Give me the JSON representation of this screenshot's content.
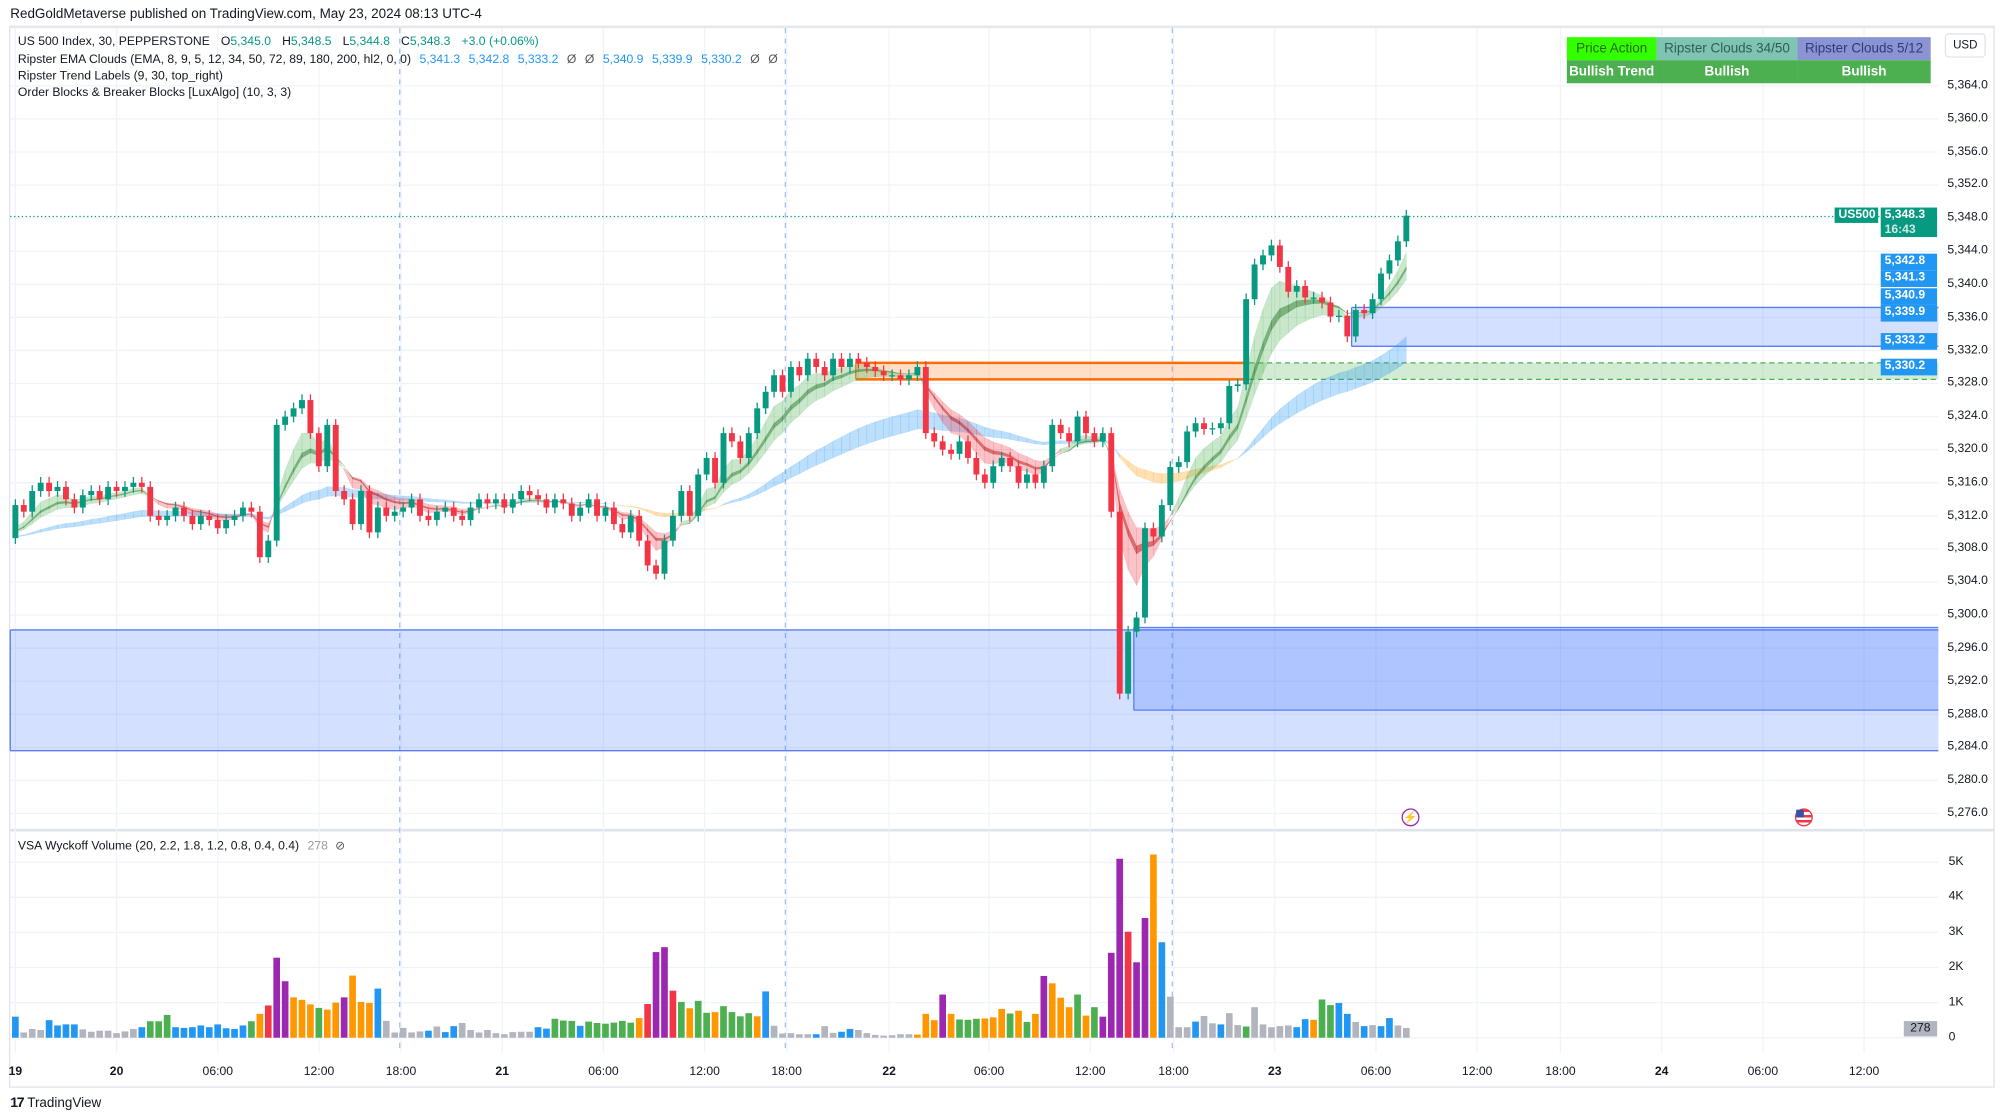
{
  "header": {
    "published": "RedGoldMetaverse published on TradingView.com, May 23, 2024 08:13 UTC-4"
  },
  "legend": {
    "symbol": "US 500 Index, 30, PEPPERSTONE",
    "ohlc": [
      {
        "k": "O",
        "v": "5,345.0"
      },
      {
        "k": "H",
        "v": "5,348.5"
      },
      {
        "k": "L",
        "v": "5,344.8"
      },
      {
        "k": "C",
        "v": "5,348.3"
      }
    ],
    "change": "+3.0 (+0.06%)",
    "ema_clouds": "Ripster EMA Clouds (EMA, 8, 9, 5, 12, 34, 50, 72, 89, 180, 200, hl2, 0, 0)",
    "ema_values": [
      "5,341.3",
      "5,342.8",
      "5,333.2",
      "Ø",
      "Ø",
      "5,340.9",
      "5,339.9",
      "5,330.2",
      "Ø",
      "Ø"
    ],
    "trend_labels": "Ripster Trend Labels (9, 30, top_right)",
    "order_blocks": "Order Blocks & Breaker Blocks [LuxAlgo] (10, 3, 3)"
  },
  "trend_table": {
    "headers": [
      "Price Action",
      "Ripster Clouds 34/50",
      "Ripster Clouds 5/12"
    ],
    "values": [
      "Bullish Trend",
      "Bullish",
      "Bullish"
    ],
    "header_colors": [
      "#33ff00",
      "#7fc4b2",
      "#8a94d2"
    ],
    "value_color": "#4caf50"
  },
  "currency": "USD",
  "price_axis": [
    "5,364.0",
    "5,360.0",
    "5,356.0",
    "5,352.0",
    "5,348.0",
    "5,344.0",
    "5,340.0",
    "5,336.0",
    "5,332.0",
    "5,328.0",
    "5,324.0",
    "5,320.0",
    "5,316.0",
    "5,312.0",
    "5,308.0",
    "5,304.0",
    "5,300.0",
    "5,296.0",
    "5,292.0",
    "5,288.0",
    "5,284.0",
    "5,280.0",
    "5,276.0"
  ],
  "price_badges": [
    {
      "symbol": "US500",
      "value": "5,348.3",
      "countdown": "16:43",
      "color": "#089981"
    },
    {
      "value": "5,342.8",
      "color": "#2196f3"
    },
    {
      "value": "5,341.3",
      "color": "#2196f3"
    },
    {
      "value": "5,340.9",
      "color": "#2196f3"
    },
    {
      "value": "5,339.9",
      "color": "#2196f3"
    },
    {
      "value": "5,333.2",
      "color": "#2196f3"
    },
    {
      "value": "5,330.2",
      "color": "#2196f3"
    }
  ],
  "time_axis": [
    {
      "t": "19",
      "day": true
    },
    {
      "t": "20",
      "day": true
    },
    {
      "t": "06:00"
    },
    {
      "t": "12:00"
    },
    {
      "t": "18:00"
    },
    {
      "t": "21",
      "day": true
    },
    {
      "t": "06:00"
    },
    {
      "t": "12:00"
    },
    {
      "t": "18:00"
    },
    {
      "t": "22",
      "day": true
    },
    {
      "t": "06:00"
    },
    {
      "t": "12:00"
    },
    {
      "t": "18:00"
    },
    {
      "t": "23",
      "day": true
    },
    {
      "t": "06:00"
    },
    {
      "t": "12:00"
    },
    {
      "t": "18:00"
    },
    {
      "t": "24",
      "day": true
    },
    {
      "t": "06:00"
    },
    {
      "t": "12:00"
    }
  ],
  "volume_pane": {
    "title": "VSA Wyckoff Volume (20, 2.2, 1.8, 1.2, 0.8, 0.4, 0.4)",
    "last_value": "278",
    "axis": [
      "5K",
      "4K",
      "3K",
      "2K",
      "1K",
      "0"
    ]
  },
  "colors": {
    "up": "#089981",
    "down": "#f23645",
    "blue": "#2196f3",
    "gray": "#b2b5be",
    "green": "#4caf50",
    "orange": "#ff9800",
    "red": "#f23645",
    "purple": "#9c27b0"
  },
  "footer": {
    "brand": "TradingView"
  },
  "events": [
    {
      "icon": "lightning-event-icon"
    },
    {
      "icon": "us-flag-event-icon"
    }
  ],
  "chart_data": {
    "type": "candlestick",
    "symbol": "US500",
    "interval": "30",
    "first_open": 5309.3,
    "closes": [
      5313.3,
      5312.5,
      5315,
      5316,
      5315,
      5315.5,
      5314,
      5313,
      5314.5,
      5315,
      5314,
      5315.5,
      5315,
      5315.5,
      5316,
      5315.5,
      5312,
      5311.5,
      5312,
      5313,
      5312,
      5311,
      5312,
      5311.5,
      5310.5,
      5311.5,
      5312,
      5313,
      5312.5,
      5307,
      5309,
      5323,
      5324,
      5325,
      5326,
      5322,
      5318,
      5323,
      5315,
      5314,
      5311,
      5315,
      5310,
      5313,
      5312,
      5312.5,
      5313,
      5314,
      5312,
      5311.5,
      5312.5,
      5313,
      5312,
      5311.5,
      5313,
      5314,
      5313.5,
      5314,
      5313,
      5314,
      5315,
      5314.5,
      5314,
      5313,
      5314,
      5313.5,
      5312,
      5313,
      5314,
      5312,
      5313,
      5311,
      5310,
      5312,
      5309,
      5306,
      5305,
      5309,
      5312,
      5315,
      5312,
      5317,
      5319,
      5316,
      5322,
      5321,
      5319,
      5322,
      5325,
      5327,
      5329,
      5327,
      5330,
      5329,
      5331,
      5330,
      5329,
      5331,
      5330,
      5331,
      5330.5,
      5330,
      5329.5,
      5329,
      5329,
      5328.5,
      5329,
      5330,
      5322,
      5321,
      5320,
      5319.5,
      5321,
      5319,
      5317,
      5316,
      5318,
      5319,
      5318,
      5316,
      5317,
      5316,
      5318,
      5323,
      5322,
      5321,
      5324,
      5322,
      5321,
      5322,
      5312.5,
      5290.5,
      5298,
      5299.7,
      5310.5,
      5309.5,
      5313.3,
      5317.9,
      5318.5,
      5322.2,
      5323.2,
      5322.5,
      5322.6,
      5323.2,
      5327.7,
      5327.9,
      5338.2,
      5342.4,
      5343.5,
      5344.7,
      5342.1,
      5339.1,
      5339.8,
      5338.4,
      5338.4,
      5337.8,
      5336.1,
      5336.2,
      5333.7,
      5336.9,
      5336.5,
      5338.2,
      5341.3,
      5342.9,
      5345.2,
      5348.3
    ],
    "volumes": [
      600,
      150,
      250,
      220,
      500,
      350,
      380,
      380,
      240,
      170,
      200,
      200,
      130,
      180,
      250,
      300,
      470,
      470,
      650,
      300,
      280,
      300,
      350,
      300,
      380,
      270,
      250,
      350,
      470,
      680,
      920,
      2280,
      1610,
      1150,
      1080,
      950,
      850,
      800,
      1000,
      1150,
      1770,
      1020,
      990,
      1400,
      480,
      150,
      280,
      150,
      180,
      200,
      320,
      160,
      330,
      420,
      220,
      150,
      220,
      130,
      100,
      160,
      170,
      170,
      300,
      260,
      540,
      490,
      480,
      340,
      460,
      420,
      400,
      430,
      480,
      430,
      560,
      960,
      2440,
      2580,
      1340,
      1020,
      840,
      1050,
      710,
      730,
      900,
      730,
      610,
      700,
      610,
      1320,
      340,
      120,
      130,
      100,
      100,
      100,
      330,
      140,
      170,
      250,
      220,
      130,
      80,
      60,
      70,
      100,
      100,
      90,
      680,
      500,
      1230,
      680,
      520,
      510,
      540,
      550,
      580,
      820,
      690,
      770,
      450,
      680,
      1760,
      1550,
      1140,
      870,
      1230,
      630,
      870,
      600,
      2420,
      5100,
      3020,
      2150,
      3410,
      5220,
      2720,
      1170,
      300,
      300,
      460,
      620,
      410,
      380,
      700,
      360,
      320,
      870,
      380,
      300,
      330,
      350,
      300,
      530,
      510,
      1090,
      930,
      990,
      680,
      450,
      330,
      360,
      330,
      560,
      350,
      278
    ],
    "volume_classes": "bnnnbbbbnnnnnnnbGGGbbbbbbbbbGorppoooGoopooobnnnnnbnbbnnnnnnnnnbbGGGbGGGGGGorpprGoGGoGGGGobnnnnnbnnbbnnnnnnnooopoGGGoooGoGopoooGoGppprppobnnnbnnbnnGnnnnnbbOGGbbnbnbbn",
    "y_range": [
      5274,
      5366
    ],
    "order_blocks": [
      {
        "top": 5298.2,
        "bottom": 5283.6,
        "kind": "bullish"
      },
      {
        "top": 5298.5,
        "bottom": 5288.5,
        "kind": "bullish"
      },
      {
        "top": 5330.5,
        "bottom": 5328.5,
        "kind": "bearish"
      },
      {
        "top": 5330.5,
        "bottom": 5328.5,
        "kind": "breaker"
      },
      {
        "top": 5337.2,
        "bottom": 5332.5,
        "kind": "bullish"
      }
    ]
  }
}
